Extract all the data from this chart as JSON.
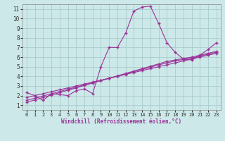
{
  "bg_color": "#cce8e8",
  "grid_color": "#aacccc",
  "line_color": "#993399",
  "xlabel": "Windchill (Refroidissement éolien,°C)",
  "xlim": [
    -0.5,
    23.5
  ],
  "ylim": [
    0.5,
    11.5
  ],
  "yticks": [
    1,
    2,
    3,
    4,
    5,
    6,
    7,
    8,
    9,
    10,
    11
  ],
  "xticks": [
    0,
    1,
    2,
    3,
    4,
    5,
    6,
    7,
    8,
    9,
    10,
    11,
    12,
    13,
    14,
    15,
    16,
    17,
    18,
    19,
    20,
    21,
    22,
    23
  ],
  "line1_x": [
    0,
    1,
    2,
    3,
    4,
    5,
    6,
    7,
    8,
    9,
    10,
    11,
    12,
    13,
    14,
    15,
    16,
    17,
    18,
    19,
    20,
    21,
    22,
    23
  ],
  "line1_y": [
    2.3,
    2.0,
    1.5,
    2.2,
    2.1,
    2.0,
    2.5,
    2.7,
    2.2,
    5.0,
    7.0,
    7.0,
    8.5,
    10.8,
    11.2,
    11.3,
    9.5,
    7.5,
    6.5,
    5.8,
    5.7,
    6.2,
    6.8,
    7.5
  ],
  "line2_x": [
    0,
    1,
    2,
    3,
    4,
    5,
    6,
    7,
    8,
    9,
    10,
    11,
    12,
    13,
    14,
    15,
    16,
    17,
    18,
    19,
    20,
    21,
    22,
    23
  ],
  "line2_y": [
    1.3,
    1.55,
    1.8,
    2.05,
    2.3,
    2.55,
    2.8,
    3.05,
    3.3,
    3.55,
    3.8,
    4.05,
    4.3,
    4.55,
    4.8,
    5.05,
    5.3,
    5.55,
    5.7,
    5.85,
    6.0,
    6.2,
    6.4,
    6.6
  ],
  "line3_x": [
    0,
    1,
    2,
    3,
    4,
    5,
    6,
    7,
    8,
    9,
    10,
    11,
    12,
    13,
    14,
    15,
    16,
    17,
    18,
    19,
    20,
    21,
    22,
    23
  ],
  "line3_y": [
    1.5,
    1.73,
    1.96,
    2.19,
    2.42,
    2.65,
    2.88,
    3.11,
    3.34,
    3.57,
    3.8,
    4.03,
    4.26,
    4.49,
    4.72,
    4.95,
    5.18,
    5.41,
    5.6,
    5.75,
    5.9,
    6.1,
    6.3,
    6.5
  ],
  "line4_x": [
    0,
    1,
    2,
    3,
    4,
    5,
    6,
    7,
    8,
    9,
    10,
    11,
    12,
    13,
    14,
    15,
    16,
    17,
    18,
    19,
    20,
    21,
    22,
    23
  ],
  "line4_y": [
    1.8,
    2.0,
    2.2,
    2.4,
    2.6,
    2.8,
    3.0,
    3.2,
    3.4,
    3.6,
    3.8,
    4.0,
    4.2,
    4.4,
    4.6,
    4.8,
    5.0,
    5.2,
    5.4,
    5.6,
    5.8,
    6.0,
    6.2,
    6.4
  ]
}
